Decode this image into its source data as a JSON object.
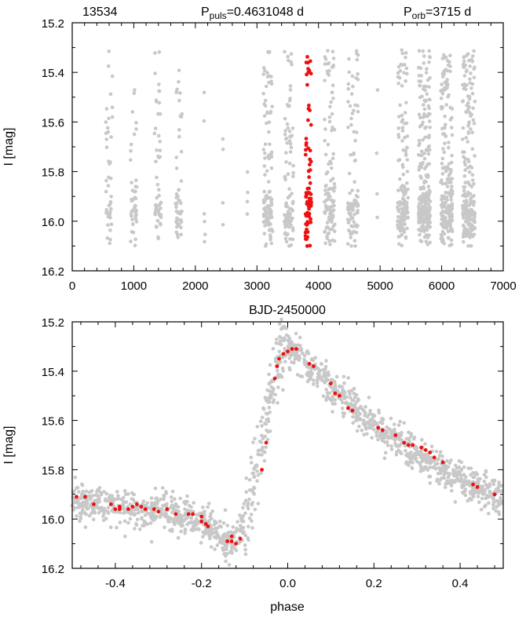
{
  "colors": {
    "grey": "#c8c8c8",
    "red": "#ee1111",
    "axis": "#000000"
  },
  "top": {
    "star_id": "13534",
    "ppuls_prefix": "P",
    "ppuls_sub": "puls",
    "ppuls_value": "=0.4631048 d",
    "porb_prefix": "P",
    "porb_sub": "orb",
    "porb_value": "=3715 d",
    "ylabel": "I [mag]",
    "xlabel": "BJD-2450000"
  },
  "bottom": {
    "ylabel": "I [mag]",
    "xlabel": "phase"
  },
  "chart_data": [
    {
      "type": "scatter",
      "panel": "top",
      "x_range": [
        0,
        7000
      ],
      "y_range": [
        15.2,
        16.2
      ],
      "y_inverted": true,
      "x_ticks": [
        0,
        1000,
        2000,
        3000,
        4000,
        5000,
        6000,
        7000
      ],
      "x_tick_labels": [
        "0",
        "1000",
        "2000",
        "3000",
        "4000",
        "5000",
        "6000",
        "7000"
      ],
      "y_ticks": [
        15.2,
        15.4,
        15.6,
        15.8,
        16.0,
        16.2
      ],
      "y_tick_labels": [
        "15.2",
        "15.4",
        "15.6",
        "15.8",
        "16.0",
        "16.2"
      ],
      "grey_seasons": [
        {
          "center": 600,
          "width": 110,
          "n": 45
        },
        {
          "center": 1000,
          "width": 110,
          "n": 45
        },
        {
          "center": 1390,
          "width": 110,
          "n": 50
        },
        {
          "center": 1730,
          "width": 110,
          "n": 50
        },
        {
          "center": 2150,
          "width": 20,
          "n": 6
        },
        {
          "center": 2450,
          "width": 20,
          "n": 4
        },
        {
          "center": 2850,
          "width": 20,
          "n": 4
        },
        {
          "center": 3180,
          "width": 150,
          "n": 110
        },
        {
          "center": 3520,
          "width": 150,
          "n": 90
        },
        {
          "center": 4180,
          "width": 170,
          "n": 110
        },
        {
          "center": 4560,
          "width": 170,
          "n": 100
        },
        {
          "center": 4950,
          "width": 20,
          "n": 4
        },
        {
          "center": 5370,
          "width": 170,
          "n": 150
        },
        {
          "center": 5720,
          "width": 190,
          "n": 240
        },
        {
          "center": 6080,
          "width": 190,
          "n": 220
        },
        {
          "center": 6440,
          "width": 200,
          "n": 220
        }
      ],
      "red_season": {
        "center": 3835,
        "width": 95,
        "n": 75
      },
      "mag_range": [
        15.31,
        16.1
      ]
    },
    {
      "type": "scatter",
      "panel": "bottom",
      "x_range": [
        -0.5,
        0.5
      ],
      "y_range": [
        15.2,
        16.2
      ],
      "y_inverted": true,
      "x_ticks": [
        -0.4,
        -0.2,
        0.0,
        0.2,
        0.4
      ],
      "x_tick_labels": [
        "-0.4",
        "-0.2",
        "0.0",
        "0.2",
        "0.4"
      ],
      "y_ticks": [
        15.2,
        15.4,
        15.6,
        15.8,
        16.0,
        16.2
      ],
      "y_tick_labels": [
        "15.2",
        "15.4",
        "15.6",
        "15.8",
        "16.0",
        "16.2"
      ],
      "light_curve_template": {
        "phase": [
          -0.5,
          -0.4,
          -0.3,
          -0.22,
          -0.18,
          -0.14,
          -0.12,
          -0.1,
          -0.08,
          -0.06,
          -0.04,
          -0.02,
          0.0,
          0.05,
          0.1,
          0.2,
          0.3,
          0.4,
          0.5
        ],
        "mag": [
          15.92,
          15.95,
          15.97,
          15.99,
          16.03,
          16.09,
          16.08,
          16.0,
          15.87,
          15.7,
          15.5,
          15.33,
          15.3,
          15.38,
          15.46,
          15.62,
          15.74,
          15.84,
          15.91
        ]
      },
      "grey_points": 1500,
      "scatter_mag": 0.035,
      "red_points": [
        [
          -0.49,
          15.91
        ],
        [
          -0.47,
          15.91
        ],
        [
          -0.45,
          15.94
        ],
        [
          -0.41,
          15.94
        ],
        [
          -0.39,
          15.95
        ],
        [
          -0.4,
          15.96
        ],
        [
          -0.39,
          15.96
        ],
        [
          -0.37,
          15.96
        ],
        [
          -0.36,
          15.95
        ],
        [
          -0.35,
          15.94
        ],
        [
          -0.34,
          15.95
        ],
        [
          -0.33,
          15.96
        ],
        [
          -0.31,
          15.96
        ],
        [
          -0.3,
          15.97
        ],
        [
          -0.28,
          15.96
        ],
        [
          -0.26,
          15.98
        ],
        [
          -0.23,
          15.98
        ],
        [
          -0.22,
          15.98
        ],
        [
          -0.2,
          15.99
        ],
        [
          -0.2,
          16.01
        ],
        [
          -0.19,
          16.02
        ],
        [
          -0.185,
          16.03
        ],
        [
          -0.14,
          16.09
        ],
        [
          -0.13,
          16.09
        ],
        [
          -0.12,
          16.1
        ],
        [
          -0.11,
          16.08
        ],
        [
          -0.13,
          16.07
        ],
        [
          -0.06,
          15.8
        ],
        [
          -0.05,
          15.69
        ],
        [
          -0.03,
          15.43
        ],
        [
          -0.025,
          15.38
        ],
        [
          -0.02,
          15.35
        ],
        [
          -0.01,
          15.33
        ],
        [
          0.0,
          15.32
        ],
        [
          0.01,
          15.31
        ],
        [
          0.02,
          15.31
        ],
        [
          0.05,
          15.37
        ],
        [
          0.06,
          15.38
        ],
        [
          0.1,
          15.45
        ],
        [
          0.11,
          15.49
        ],
        [
          0.12,
          15.5
        ],
        [
          0.14,
          15.55
        ],
        [
          0.15,
          15.56
        ],
        [
          0.21,
          15.63
        ],
        [
          0.22,
          15.64
        ],
        [
          0.25,
          15.66
        ],
        [
          0.27,
          15.69
        ],
        [
          0.28,
          15.7
        ],
        [
          0.29,
          15.7
        ],
        [
          0.31,
          15.71
        ],
        [
          0.32,
          15.72
        ],
        [
          0.33,
          15.73
        ],
        [
          0.34,
          15.75
        ],
        [
          0.36,
          15.77
        ],
        [
          0.43,
          15.86
        ],
        [
          0.44,
          15.87
        ],
        [
          0.48,
          15.9
        ]
      ]
    }
  ]
}
